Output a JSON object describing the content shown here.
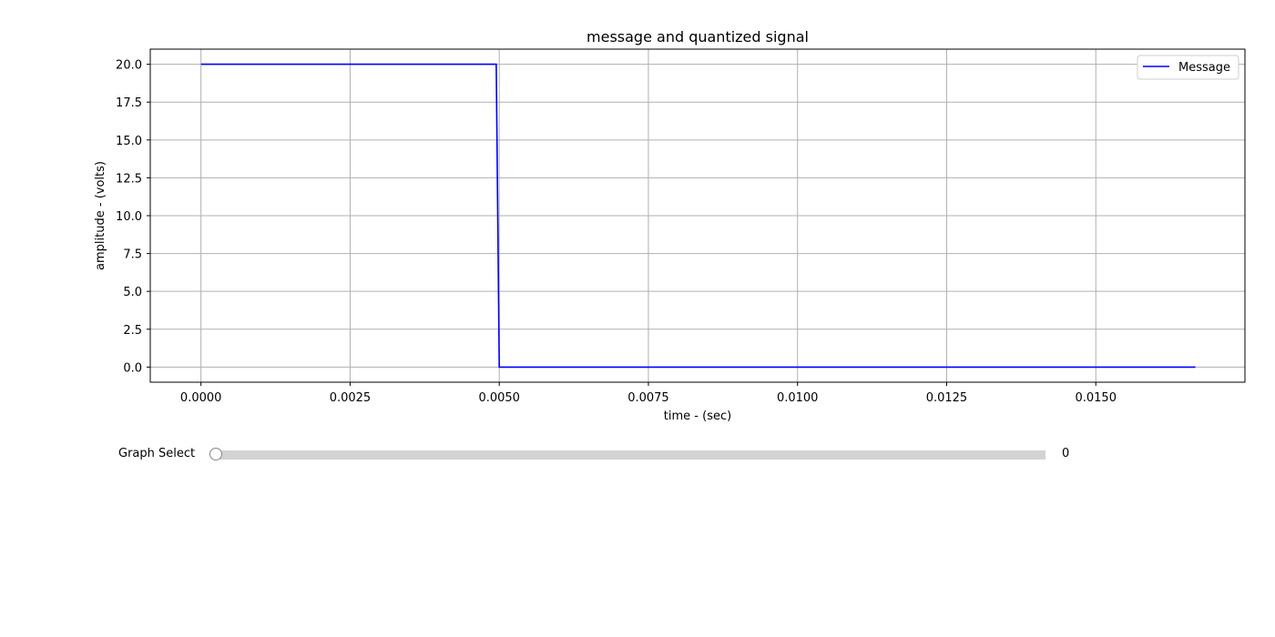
{
  "chart_data": {
    "type": "line",
    "title": "message and quantized signal",
    "xlabel": "time - (sec)",
    "ylabel": "amplitude - (volts)",
    "xlim": [
      -0.00085,
      0.0175
    ],
    "ylim": [
      -1.0,
      21.0
    ],
    "xticks": [
      0.0,
      0.0025,
      0.005,
      0.0075,
      0.01,
      0.0125,
      0.015
    ],
    "xtick_labels": [
      "0.0000",
      "0.0025",
      "0.0050",
      "0.0075",
      "0.0100",
      "0.0125",
      "0.0150"
    ],
    "yticks": [
      0.0,
      2.5,
      5.0,
      7.5,
      10.0,
      12.5,
      15.0,
      17.5,
      20.0
    ],
    "ytick_labels": [
      "0.0",
      "2.5",
      "5.0",
      "7.5",
      "10.0",
      "12.5",
      "15.0",
      "17.5",
      "20.0"
    ],
    "grid": true,
    "legend_position": "top-right",
    "series": [
      {
        "name": "Message",
        "color": "#0000ff",
        "x": [
          0.0,
          0.00495,
          0.005,
          0.01667
        ],
        "y": [
          20.0,
          20.0,
          0.0,
          0.0
        ]
      }
    ]
  },
  "slider": {
    "label": "Graph Select",
    "value": "0",
    "fraction": 0.0
  }
}
